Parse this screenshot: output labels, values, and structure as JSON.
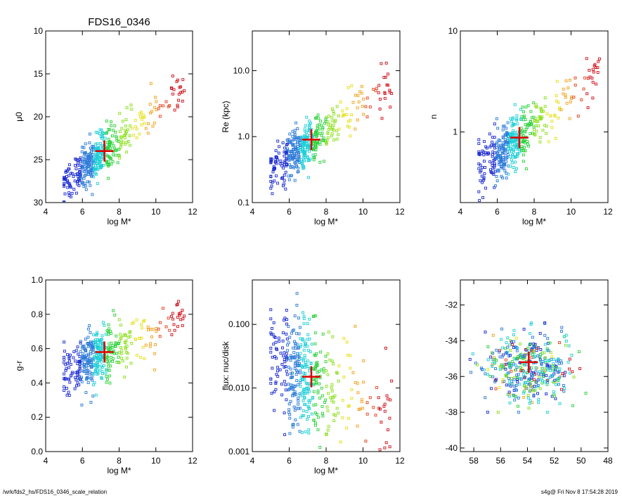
{
  "page": {
    "title": "FDS16_0346",
    "footer_left": "/wrk/fds2_hs/FDS16_0346_scale_relation",
    "footer_right": "s4g@  Fri Nov  8 17:54:28 2019"
  },
  "colors": {
    "marker": "#dd0000",
    "point_palette": [
      "#1a2ad0",
      "#2c7bd9",
      "#1fd0d6",
      "#2bd23a",
      "#8be01b",
      "#e6e01d",
      "#f1a21d",
      "#e7401c",
      "#d0101a"
    ]
  },
  "chart_data": [
    {
      "id": "mu0",
      "type": "scatter",
      "title": "FDS16_0346",
      "xlabel": "log M*",
      "ylabel": "μ0",
      "xlim": [
        4,
        12
      ],
      "ylim": [
        30,
        10
      ],
      "y_inverted": true,
      "xticks": [
        "4",
        "6",
        "8",
        "10",
        "12"
      ],
      "yticks": [
        "10",
        "15",
        "20",
        "25",
        "30"
      ],
      "marker_point": {
        "x": 7.2,
        "y": 24.0
      },
      "trend": {
        "slope": -1.75,
        "intercept": 36.6,
        "scatter": 1.3
      }
    },
    {
      "id": "re",
      "type": "scatter",
      "xlabel": "log M*",
      "ylabel": "Re (kpc)",
      "xlim": [
        4,
        12
      ],
      "ylim": [
        0.1,
        40
      ],
      "y_log": true,
      "xticks": [
        "4",
        "6",
        "8",
        "10",
        "12"
      ],
      "yticks": [
        "0.1",
        "1.0",
        "10.0"
      ],
      "marker_point": {
        "x": 7.2,
        "y": 0.9
      },
      "trend": {
        "slope": 0.2,
        "intercept": -1.5,
        "scatter": 0.17
      }
    },
    {
      "id": "n",
      "type": "scatter",
      "xlabel": "log M*",
      "ylabel": "n",
      "xlim": [
        4,
        12
      ],
      "ylim": [
        0.2,
        10
      ],
      "y_log": true,
      "xticks": [
        "4",
        "6",
        "8",
        "10",
        "12"
      ],
      "yticks": [
        "1",
        "10"
      ],
      "marker_point": {
        "x": 7.2,
        "y": 0.88
      },
      "trend": {
        "slope": 0.15,
        "intercept": -1.13,
        "scatter": 0.13
      }
    },
    {
      "id": "gr",
      "type": "scatter",
      "xlabel": "log M*",
      "ylabel": "g-r",
      "xlim": [
        4,
        12
      ],
      "ylim": [
        0.0,
        1.0
      ],
      "xticks": [
        "4",
        "6",
        "8",
        "10",
        "12"
      ],
      "yticks": [
        "0.0",
        "0.2",
        "0.4",
        "0.6",
        "0.8",
        "1.0"
      ],
      "marker_point": {
        "x": 7.2,
        "y": 0.58
      },
      "trend": {
        "slope": 0.045,
        "intercept": 0.25,
        "scatter": 0.08
      }
    },
    {
      "id": "flux",
      "type": "scatter",
      "xlabel": "log M*",
      "ylabel": "flux: nuc/disk",
      "xlim": [
        4,
        12
      ],
      "ylim": [
        0.001,
        0.5
      ],
      "y_log": true,
      "xticks": [
        "4",
        "6",
        "8",
        "10",
        "12"
      ],
      "yticks": [
        "0.001",
        "0.010",
        "0.100"
      ],
      "marker_point": {
        "x": 7.2,
        "y": 0.015
      },
      "trend": {
        "slope": -0.12,
        "intercept": -1.0,
        "scatter": 0.45
      }
    },
    {
      "id": "pos",
      "type": "scatter",
      "xlabel": "",
      "ylabel": "",
      "xlim": [
        59,
        48
      ],
      "ylim": [
        -40.2,
        -30.6
      ],
      "x_inverted": true,
      "xticks": [
        "58",
        "56",
        "54",
        "52",
        "50",
        "48"
      ],
      "yticks": [
        "-40",
        "-38",
        "-36",
        "-34",
        "-32"
      ],
      "marker_point": {
        "x": 53.9,
        "y": -35.2
      },
      "trend": {
        "slope": 0,
        "intercept": -35.5,
        "scatter": 1.1
      }
    }
  ]
}
